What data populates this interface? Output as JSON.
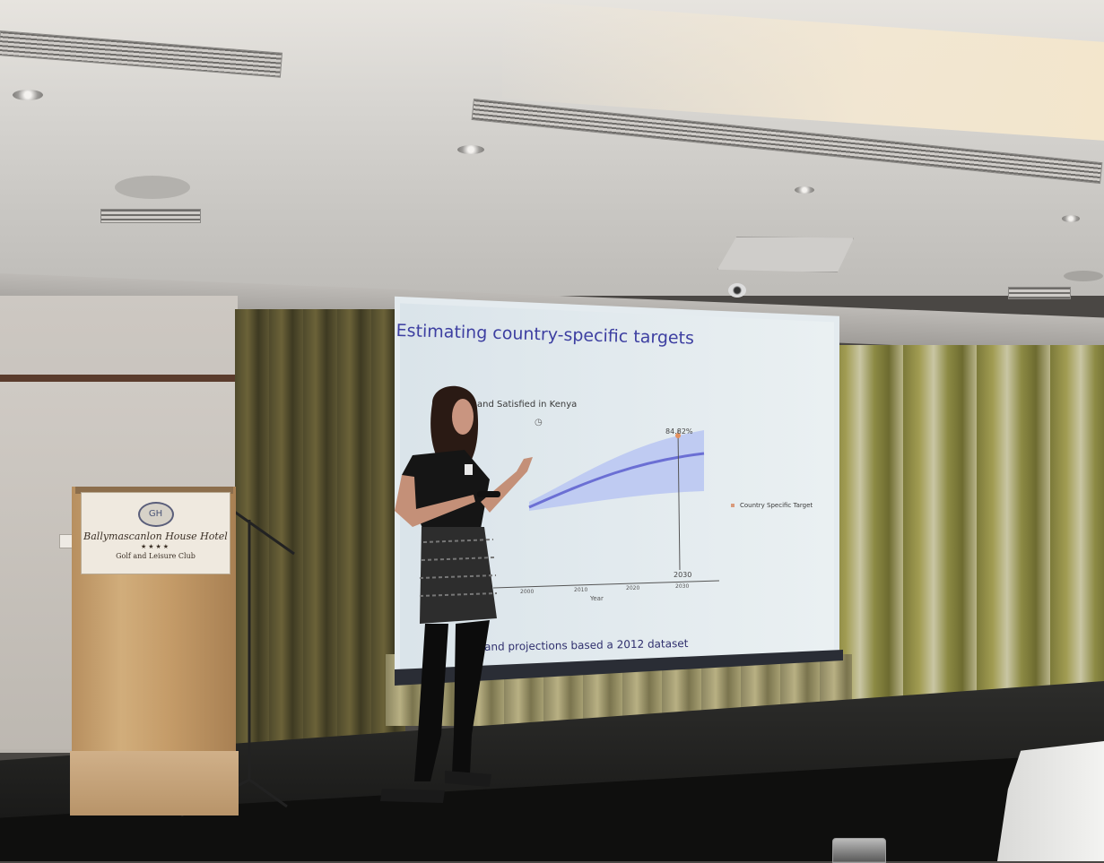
{
  "slide": {
    "title": "Estimating country-specific targets",
    "chart_heading": "and Satisfied in Kenya",
    "footer": "s and projections based a 2012 dataset",
    "annotation_value": "84.82%",
    "legend_label": "Country Specific Target",
    "x_ticks": [
      "2000",
      "2010",
      "2020",
      "2030"
    ],
    "target_year_label": "2030",
    "x_axis_label": "Year"
  },
  "podium_sign": {
    "logo": "GH",
    "name": "Ballymascanlon House Hotel",
    "stars": "★★★★",
    "subtitle": "Golf and Leisure Club"
  },
  "colors": {
    "slide_title": "#3d3fa1",
    "trend_line": "#6b6fd4",
    "uncertainty_band": "#b9c6f2",
    "target_marker": "#e3905e"
  }
}
